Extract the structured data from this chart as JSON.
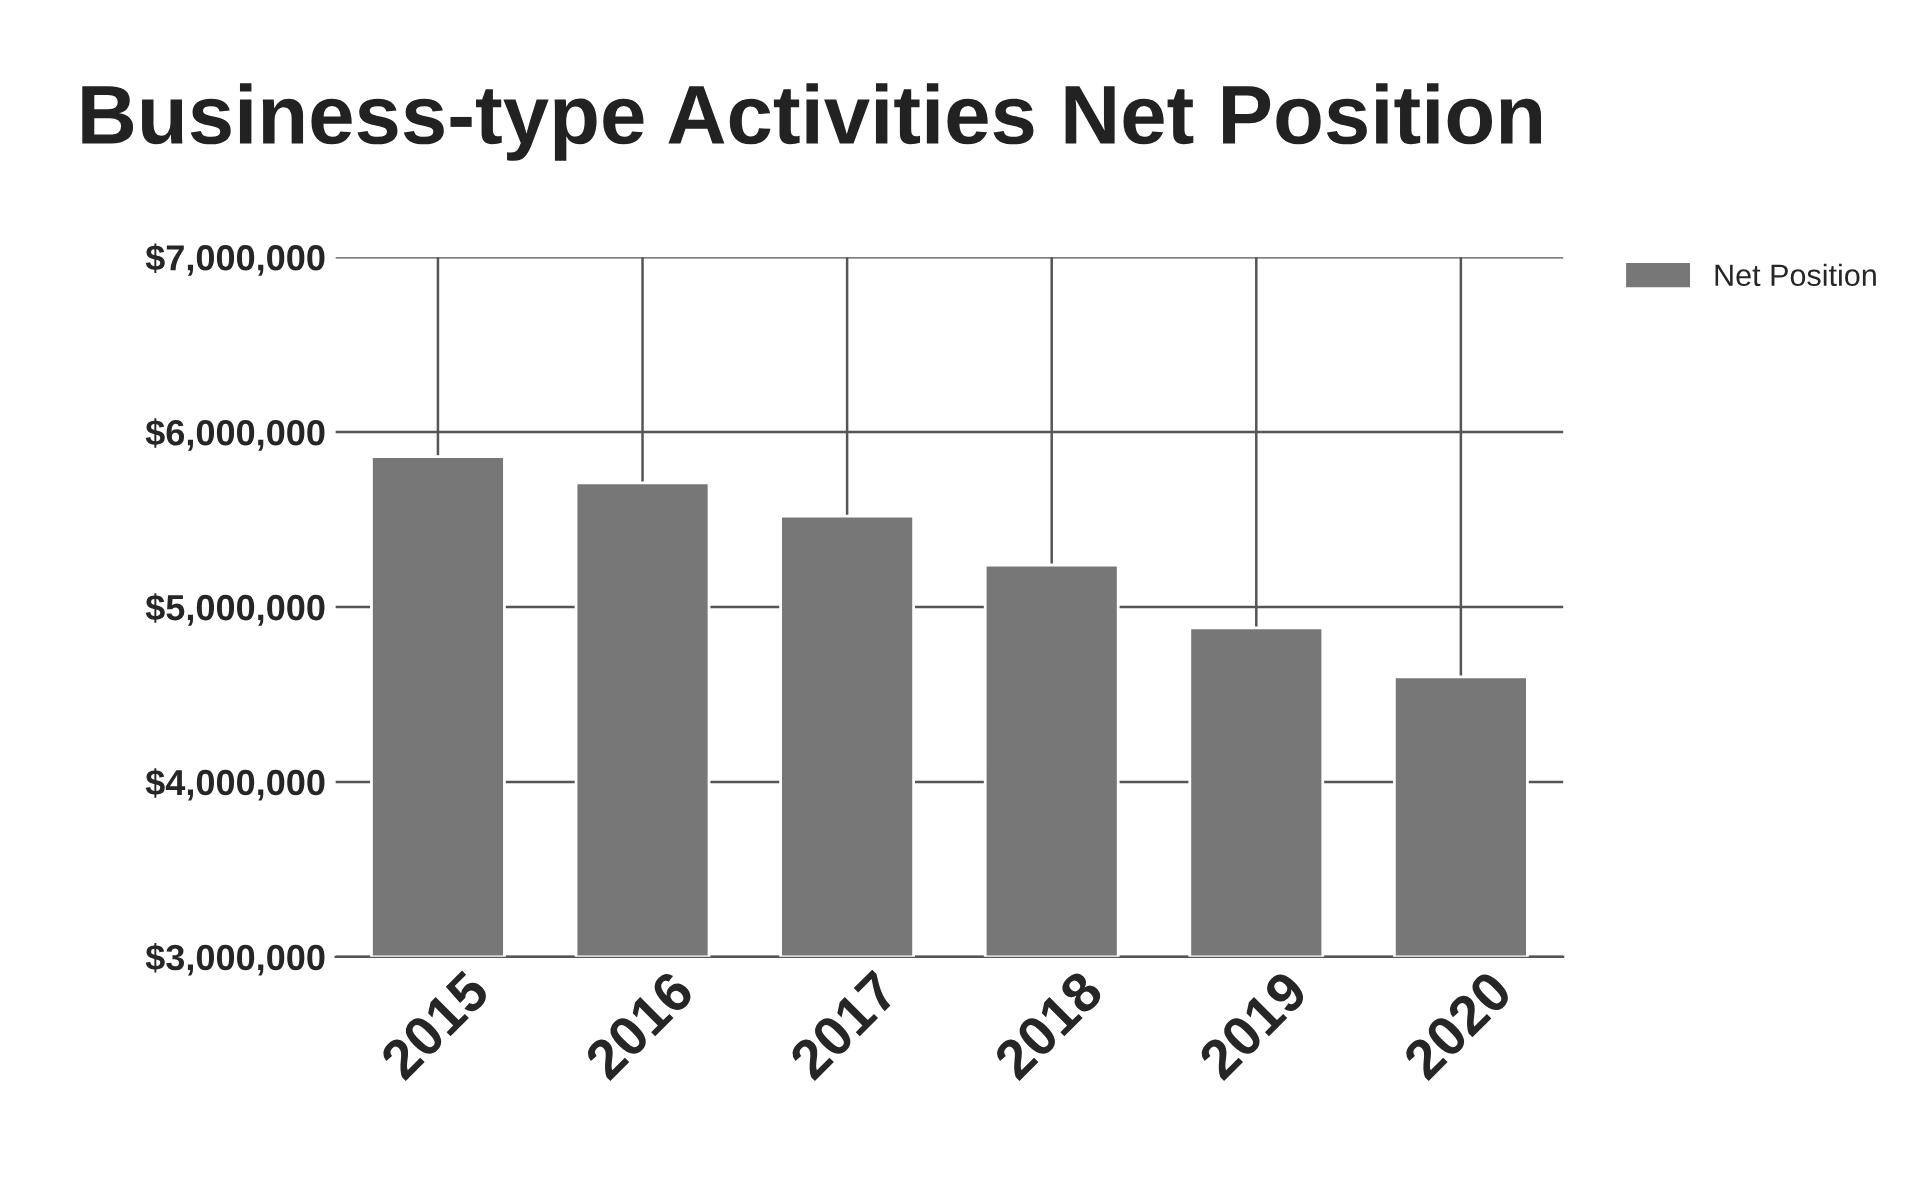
{
  "chart_data": {
    "type": "bar",
    "title": "Business-type Activities Net Position",
    "categories": [
      "2015",
      "2016",
      "2017",
      "2018",
      "2019",
      "2020"
    ],
    "series": [
      {
        "name": "Net Position",
        "color": "#777777",
        "values": [
          5860000,
          5710000,
          5520000,
          5240000,
          4880000,
          4600000
        ]
      }
    ],
    "ylim": [
      3000000,
      7000000
    ],
    "yticks": [
      {
        "value": 3000000,
        "label": "$3,000,000"
      },
      {
        "value": 4000000,
        "label": "$4,000,000"
      },
      {
        "value": 5000000,
        "label": "$5,000,000"
      },
      {
        "value": 6000000,
        "label": "$6,000,000"
      },
      {
        "value": 7000000,
        "label": "$7,000,000"
      }
    ],
    "grid": true,
    "legend": "top right"
  }
}
